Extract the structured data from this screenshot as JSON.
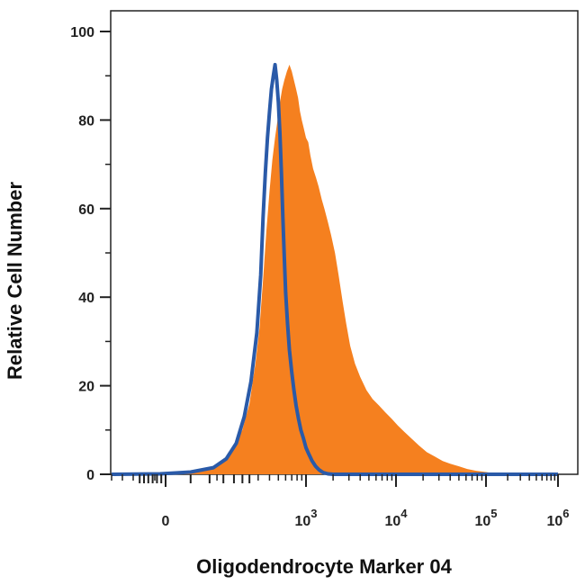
{
  "chart_data": {
    "type": "area",
    "title": "",
    "xlabel": "Oligodendrocyte Marker 04",
    "ylabel": "Relative Cell Number",
    "x_scale": "biexponential",
    "x_ticks": [
      {
        "value": 0,
        "base": "0",
        "exp": ""
      },
      {
        "value": 1000,
        "base": "10",
        "exp": "3"
      },
      {
        "value": 10000,
        "base": "10",
        "exp": "4"
      },
      {
        "value": 100000,
        "base": "10",
        "exp": "5"
      },
      {
        "value": 1000000,
        "base": "10",
        "exp": "6"
      }
    ],
    "y_ticks": [
      0,
      20,
      40,
      60,
      80,
      100
    ],
    "ylim": [
      0,
      100
    ],
    "grid": false,
    "series": [
      {
        "color": "#f5801f",
        "style": "filled",
        "points": [
          [
            -500,
            0
          ],
          [
            30,
            0.3
          ],
          [
            80,
            1.2
          ],
          [
            120,
            3
          ],
          [
            160,
            6
          ],
          [
            200,
            10
          ],
          [
            240,
            16
          ],
          [
            280,
            25
          ],
          [
            310,
            33
          ],
          [
            340,
            44
          ],
          [
            370,
            55
          ],
          [
            400,
            64
          ],
          [
            430,
            71
          ],
          [
            460,
            76
          ],
          [
            490,
            80
          ],
          [
            520,
            84
          ],
          [
            550,
            87
          ],
          [
            580,
            89
          ],
          [
            620,
            91
          ],
          [
            660,
            92.5
          ],
          [
            700,
            91
          ],
          [
            740,
            89
          ],
          [
            780,
            87
          ],
          [
            820,
            85
          ],
          [
            860,
            82
          ],
          [
            900,
            80
          ],
          [
            950,
            78
          ],
          [
            1000,
            76
          ],
          [
            1060,
            75
          ],
          [
            1120,
            72
          ],
          [
            1200,
            69
          ],
          [
            1290,
            67
          ],
          [
            1380,
            65
          ],
          [
            1500,
            62
          ],
          [
            1600,
            60
          ],
          [
            1750,
            57
          ],
          [
            1900,
            54
          ],
          [
            2100,
            50
          ],
          [
            2300,
            45
          ],
          [
            2550,
            39
          ],
          [
            2800,
            34
          ],
          [
            3100,
            29
          ],
          [
            3500,
            25
          ],
          [
            4000,
            22
          ],
          [
            4700,
            19
          ],
          [
            5500,
            17
          ],
          [
            6500,
            15.5
          ],
          [
            7600,
            14
          ],
          [
            9000,
            12.5
          ],
          [
            10500,
            11
          ],
          [
            12500,
            9.5
          ],
          [
            15000,
            8
          ],
          [
            18000,
            6.5
          ],
          [
            22000,
            5
          ],
          [
            27000,
            4
          ],
          [
            33000,
            3
          ],
          [
            40000,
            2.4
          ],
          [
            50000,
            1.8
          ],
          [
            62000,
            1.2
          ],
          [
            78000,
            0.8
          ],
          [
            100000,
            0.5
          ],
          [
            130000,
            0.2
          ],
          [
            170000,
            0.05
          ],
          [
            1000000,
            0
          ]
        ]
      },
      {
        "color": "#2a5aa8",
        "style": "line",
        "points": [
          [
            -500,
            0
          ],
          [
            -50,
            0.1
          ],
          [
            40,
            0.5
          ],
          [
            90,
            1.5
          ],
          [
            130,
            3.5
          ],
          [
            170,
            7
          ],
          [
            210,
            13
          ],
          [
            250,
            21
          ],
          [
            290,
            32
          ],
          [
            320,
            45
          ],
          [
            340,
            58
          ],
          [
            360,
            68
          ],
          [
            380,
            76
          ],
          [
            400,
            82
          ],
          [
            420,
            87
          ],
          [
            440,
            90
          ],
          [
            460,
            92.5
          ],
          [
            480,
            89
          ],
          [
            500,
            84
          ],
          [
            520,
            77
          ],
          [
            540,
            68
          ],
          [
            560,
            58
          ],
          [
            580,
            49
          ],
          [
            600,
            41
          ],
          [
            630,
            34
          ],
          [
            660,
            28
          ],
          [
            700,
            23
          ],
          [
            740,
            19
          ],
          [
            780,
            15.5
          ],
          [
            830,
            12.5
          ],
          [
            880,
            10
          ],
          [
            940,
            8
          ],
          [
            1000,
            6
          ],
          [
            1080,
            4.5
          ],
          [
            1170,
            3
          ],
          [
            1280,
            1.8
          ],
          [
            1400,
            1
          ],
          [
            1550,
            0.4
          ],
          [
            1750,
            0.1
          ],
          [
            2000,
            0
          ],
          [
            1000000,
            0
          ]
        ]
      }
    ]
  }
}
